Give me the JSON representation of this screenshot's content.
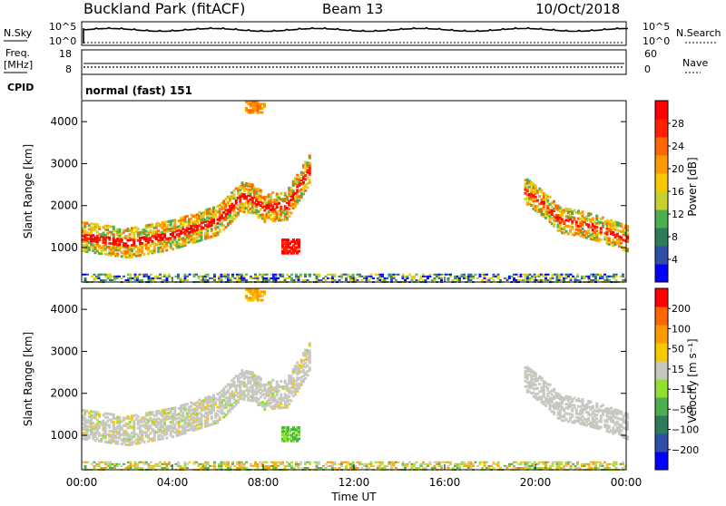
{
  "header": {
    "station": "Buckland Park (fitACF)",
    "beam": "Beam 13",
    "date": "10/Oct/2018"
  },
  "noise_panel": {
    "left_label": "N.Sky",
    "left_ticks": [
      "10^5",
      "10^0"
    ],
    "right_label": "N.Search",
    "right_ticks": [
      "10^5",
      "10^0"
    ]
  },
  "freq_panel": {
    "left_label_1": "Freq.",
    "left_label_2": "[MHz]",
    "left_ticks": [
      "18",
      "8"
    ],
    "right_label": "Nave",
    "right_ticks": [
      "60",
      "0"
    ]
  },
  "cpid_panel": {
    "label": "CPID",
    "mode": "normal (fast) 151"
  },
  "colors": {
    "power_scale": [
      "#0000ff",
      "#2f4fa8",
      "#2e7d5a",
      "#4caf50",
      "#c8d030",
      "#f5c800",
      "#ff9900",
      "#ff6600",
      "#ff2200",
      "#ff0000"
    ],
    "velocity_scale": [
      "#0000ff",
      "#2f4fa8",
      "#2e7d5a",
      "#4caf50",
      "#90e030",
      "#c8c8c0",
      "#f5c800",
      "#ff9900",
      "#ff6600",
      "#ff0000"
    ]
  },
  "chart_data": [
    {
      "type": "heatmap",
      "panel": "power",
      "ylabel": "Slant Range [km]",
      "yticks": [
        "4000",
        "3000",
        "2000",
        "1000"
      ],
      "ylim": [
        180,
        4500
      ],
      "xlim_hours": [
        0,
        24
      ],
      "colorbar_label": "Power [dB]",
      "colorbar_ticks": [
        "28",
        "24",
        "20",
        "16",
        "12",
        "8",
        "4"
      ],
      "colorbar_range": [
        0,
        32
      ],
      "features": [
        {
          "name": "main_trace_a",
          "t_hours": [
            0,
            2,
            4,
            6,
            7,
            7.5,
            8,
            9,
            10
          ],
          "range_km": [
            1300,
            1150,
            1350,
            1700,
            2250,
            2200,
            2000,
            2050,
            2900
          ]
        },
        {
          "name": "main_trace_b",
          "t_hours": [
            19.5,
            20.5,
            21,
            22,
            23,
            24
          ],
          "range_km": [
            2400,
            2000,
            1700,
            1600,
            1450,
            1250
          ]
        },
        {
          "name": "ground_scatter_patch",
          "t_hours": [
            8.8,
            9.6
          ],
          "range_km": [
            900,
            1250
          ]
        },
        {
          "name": "high_patch",
          "t_hours": [
            7.2,
            8.0
          ],
          "range_km": [
            4250,
            4500
          ]
        }
      ]
    },
    {
      "type": "heatmap",
      "panel": "velocity",
      "ylabel": "Slant Range [km]",
      "yticks": [
        "4000",
        "3000",
        "2000",
        "1000"
      ],
      "ylim": [
        180,
        4500
      ],
      "xlim_hours": [
        0,
        24
      ],
      "xticks": [
        "00:00",
        "04:00",
        "08:00",
        "12:00",
        "16:00",
        "20:00",
        "00:00"
      ],
      "xlabel": "Time UT",
      "colorbar_label": "Velocity [m s⁻¹]",
      "colorbar_ticks": [
        "200",
        "100",
        "50",
        "15",
        "−15",
        "−50",
        "−100",
        "−200"
      ]
    }
  ]
}
